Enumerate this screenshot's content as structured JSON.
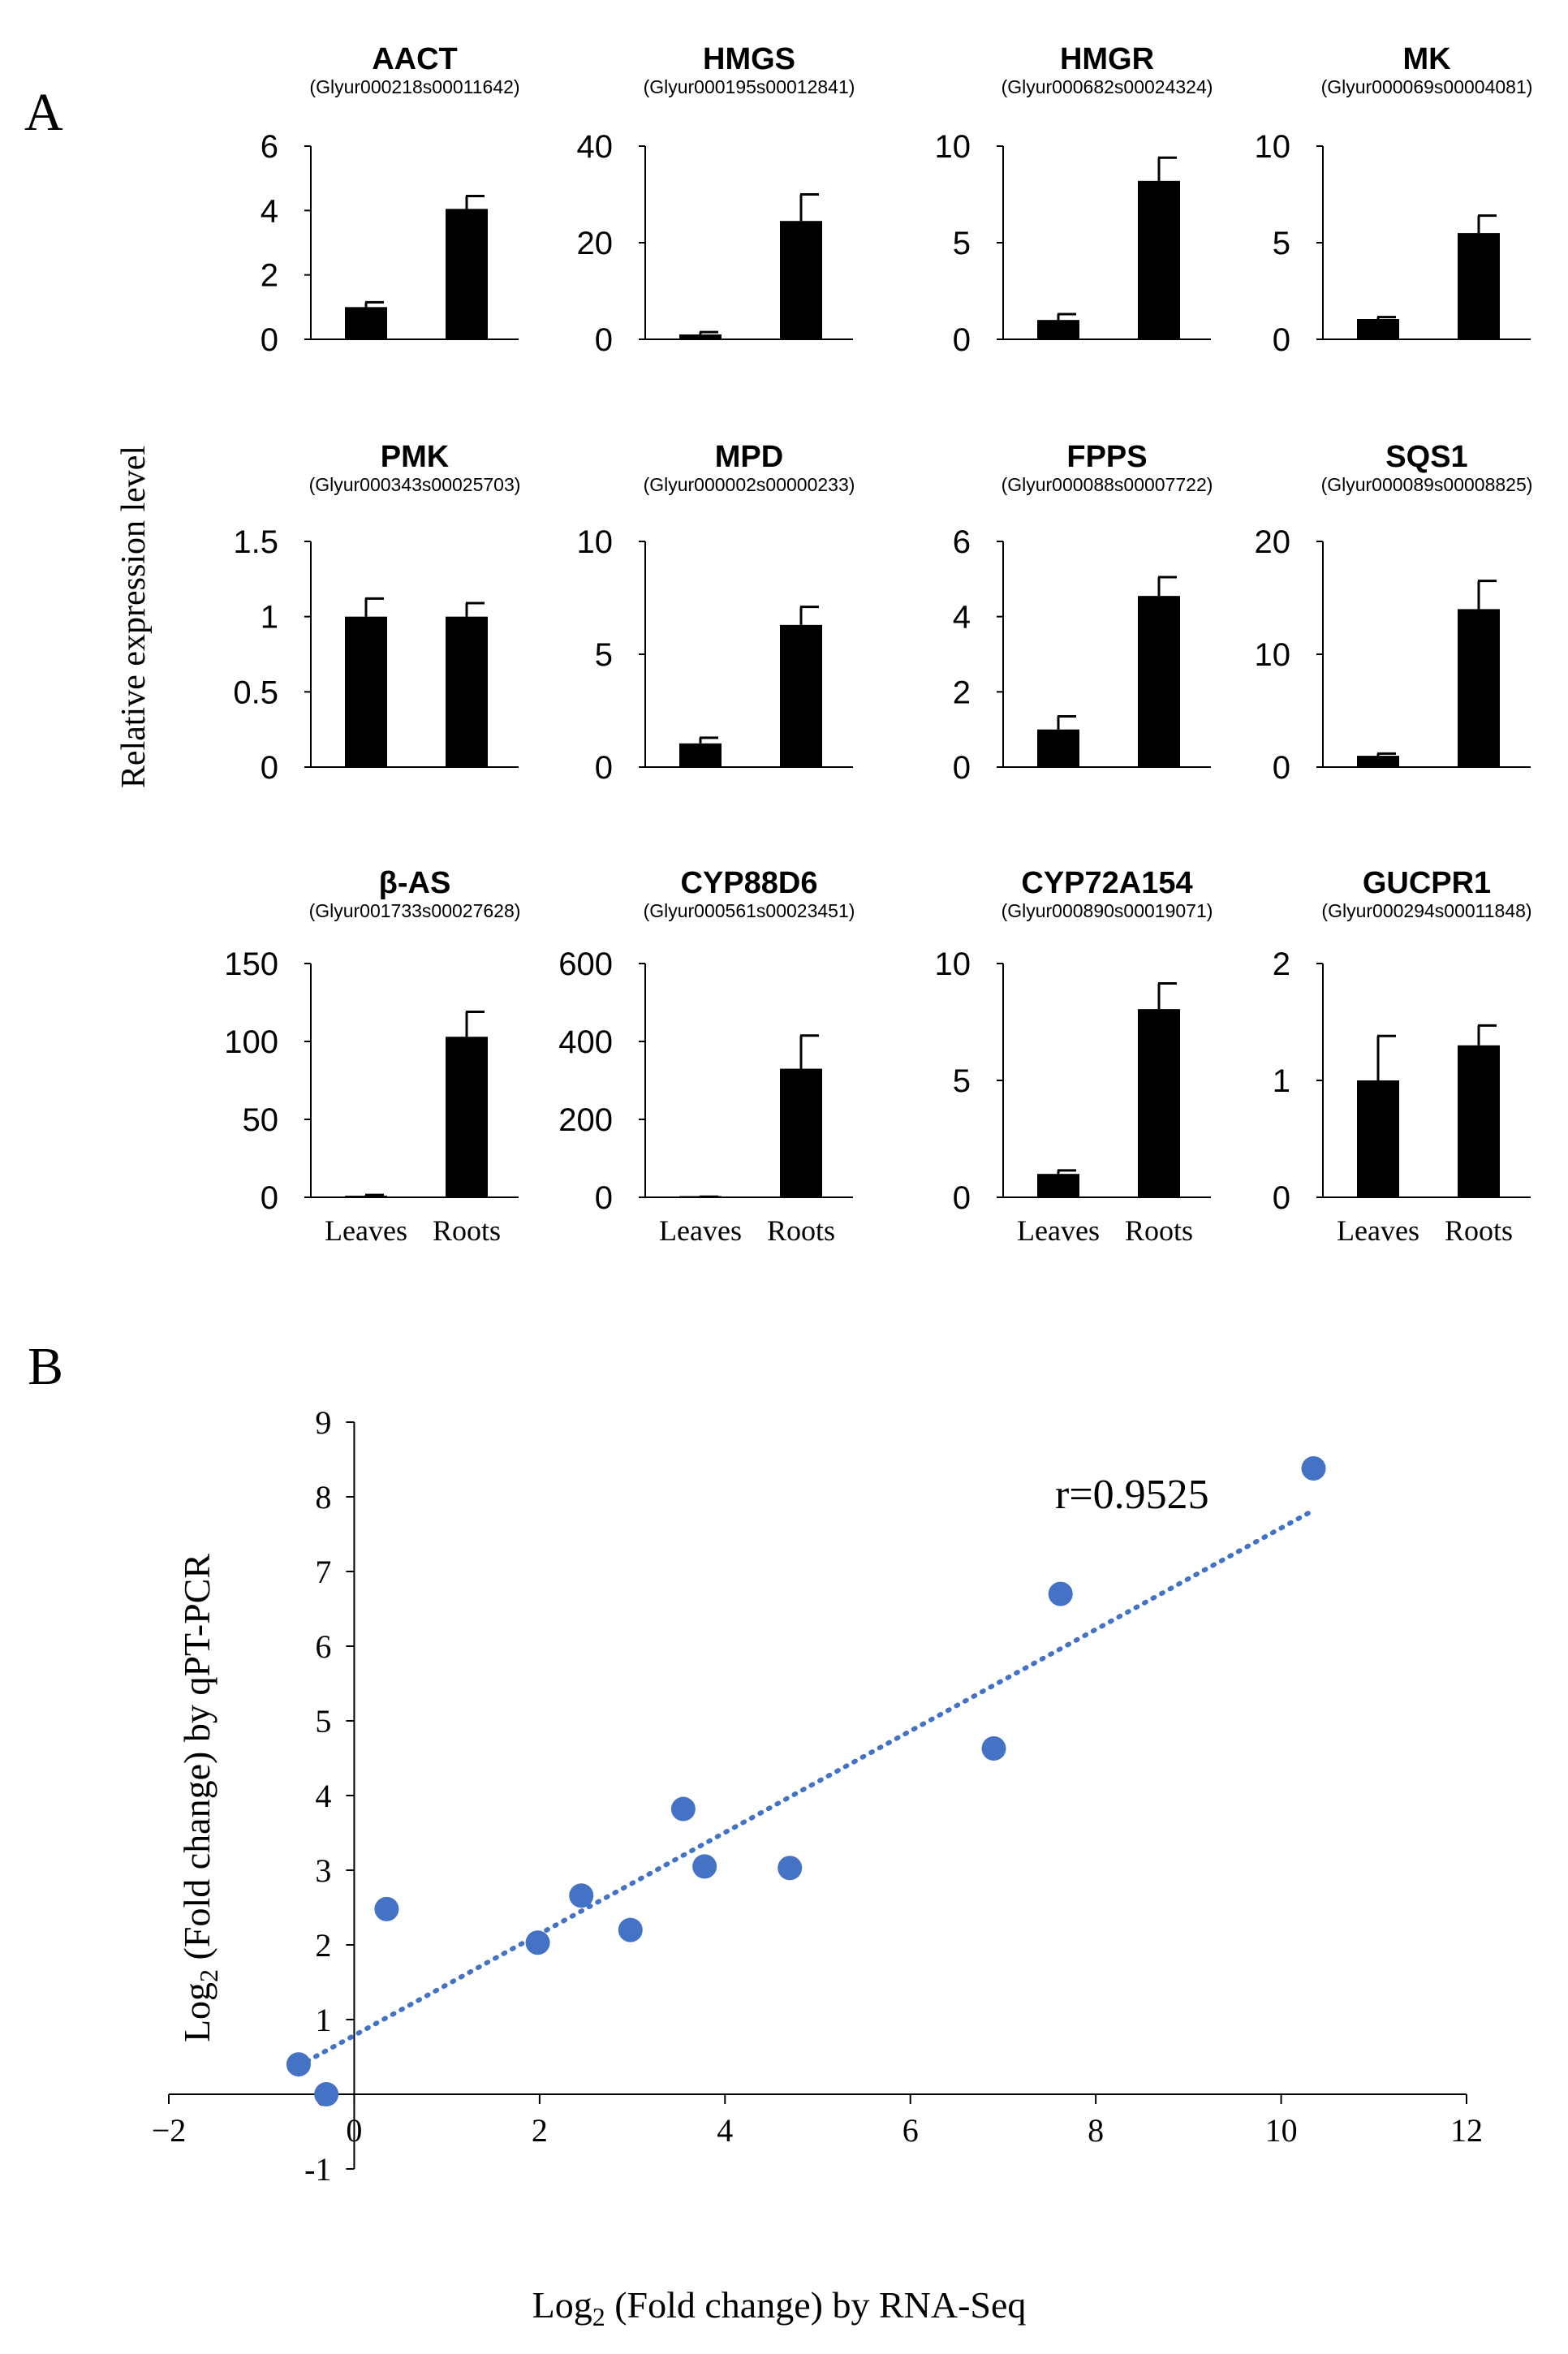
{
  "panel_a_label": "A",
  "panel_b_label": "B",
  "shared_ylabel": "Relative expression level",
  "categories": [
    "Leaves",
    "Roots"
  ],
  "chart_data": [
    {
      "type": "bar",
      "title": "AACT",
      "subtitle": "(Glyur000218s00011642)",
      "categories": [
        "Leaves",
        "Roots"
      ],
      "values": [
        1.0,
        4.05
      ],
      "errors": [
        0.15,
        0.4
      ],
      "yticks": [
        "0",
        "2",
        "4",
        "6"
      ],
      "ylim": [
        0,
        6
      ]
    },
    {
      "type": "bar",
      "title": "HMGS",
      "subtitle": "(Glyur000195s00012841)",
      "categories": [
        "Leaves",
        "Roots"
      ],
      "values": [
        1.0,
        24.5
      ],
      "errors": [
        0.5,
        5.5
      ],
      "yticks": [
        "0",
        "20",
        "40"
      ],
      "ylim": [
        0,
        40
      ]
    },
    {
      "type": "bar",
      "title": "HMGR",
      "subtitle": "(Glyur000682s00024324)",
      "categories": [
        "Leaves",
        "Roots"
      ],
      "values": [
        1.0,
        8.2
      ],
      "errors": [
        0.3,
        1.2
      ],
      "yticks": [
        "0",
        "5",
        "10"
      ],
      "ylim": [
        0,
        10
      ]
    },
    {
      "type": "bar",
      "title": "MK",
      "subtitle": "(Glyur000069s00004081)",
      "categories": [
        "Leaves",
        "Roots"
      ],
      "values": [
        1.05,
        5.5
      ],
      "errors": [
        0.1,
        0.9
      ],
      "yticks": [
        "0",
        "5",
        "10"
      ],
      "ylim": [
        0,
        10
      ]
    },
    {
      "type": "bar",
      "title": "PMK",
      "subtitle": "(Glyur000343s00025703)",
      "categories": [
        "Leaves",
        "Roots"
      ],
      "values": [
        1.0,
        1.0
      ],
      "errors": [
        0.12,
        0.09
      ],
      "yticks": [
        "0",
        "0.5",
        "1",
        "1.5"
      ],
      "ylim": [
        0,
        1.5
      ]
    },
    {
      "type": "bar",
      "title": "MPD",
      "subtitle": "(Glyur000002s00000233)",
      "categories": [
        "Leaves",
        "Roots"
      ],
      "values": [
        1.05,
        6.3
      ],
      "errors": [
        0.25,
        0.8
      ],
      "yticks": [
        "0",
        "5",
        "10"
      ],
      "ylim": [
        0,
        10
      ]
    },
    {
      "type": "bar",
      "title": "FPPS",
      "subtitle": "(Glyur000088s00007722)",
      "categories": [
        "Leaves",
        "Roots"
      ],
      "values": [
        1.0,
        4.55
      ],
      "errors": [
        0.35,
        0.5
      ],
      "yticks": [
        "0",
        "2",
        "4",
        "6"
      ],
      "ylim": [
        0,
        6
      ]
    },
    {
      "type": "bar",
      "title": "SQS1",
      "subtitle": "(Glyur000089s00008825)",
      "categories": [
        "Leaves",
        "Roots"
      ],
      "values": [
        1.0,
        14.0
      ],
      "errors": [
        0.2,
        2.5
      ],
      "yticks": [
        "0",
        "10",
        "20"
      ],
      "ylim": [
        0,
        20
      ]
    },
    {
      "type": "bar",
      "title": "β-AS",
      "subtitle": "(Glyur001733s00027628)",
      "categories": [
        "Leaves",
        "Roots"
      ],
      "values": [
        1.0,
        103.0
      ],
      "errors": [
        0.5,
        16.0
      ],
      "yticks": [
        "0",
        "50",
        "100",
        "150"
      ],
      "ylim": [
        0,
        150
      ]
    },
    {
      "type": "bar",
      "title": "CYP88D6",
      "subtitle": "(Glyur000561s00023451)",
      "categories": [
        "Leaves",
        "Roots"
      ],
      "values": [
        1.0,
        330.0
      ],
      "errors": [
        0.5,
        85.0
      ],
      "yticks": [
        "0",
        "200",
        "400",
        "600"
      ],
      "ylim": [
        0,
        600
      ]
    },
    {
      "type": "bar",
      "title": "CYP72A154",
      "subtitle": "(Glyur000890s00019071)",
      "categories": [
        "Leaves",
        "Roots"
      ],
      "values": [
        1.0,
        8.05
      ],
      "errors": [
        0.15,
        1.1
      ],
      "yticks": [
        "0",
        "5",
        "10"
      ],
      "ylim": [
        0,
        10
      ]
    },
    {
      "type": "bar",
      "title": "GUCPR1",
      "subtitle": "(Glyur000294s00011848)",
      "categories": [
        "Leaves",
        "Roots"
      ],
      "values": [
        1.0,
        1.3
      ],
      "errors": [
        0.38,
        0.17
      ],
      "yticks": [
        "0",
        "1",
        "2"
      ],
      "ylim": [
        0,
        2
      ]
    },
    {
      "type": "scatter",
      "xlabel_main": "Log",
      "xlabel_sub": "2",
      "xlabel_rest": " (Fold change) by RNA-Seq",
      "ylabel_main": "Log",
      "ylabel_sub": "2",
      "ylabel_rest": " (Fold change) by qPT-PCR",
      "annotation": "r=0.9525",
      "xlim": [
        -2,
        12
      ],
      "ylim": [
        -1,
        9
      ],
      "xticks": [
        "−2",
        "0",
        "2",
        "4",
        "6",
        "8",
        "10",
        "12"
      ],
      "yticks": [
        "-1",
        "0",
        "1",
        "2",
        "3",
        "4",
        "5",
        "6",
        "7",
        "8",
        "9"
      ],
      "points": [
        {
          "x": -0.6,
          "y": 0.4
        },
        {
          "x": -0.3,
          "y": 0.0
        },
        {
          "x": 0.35,
          "y": 2.48
        },
        {
          "x": 1.98,
          "y": 2.03
        },
        {
          "x": 2.45,
          "y": 2.66
        },
        {
          "x": 2.98,
          "y": 2.2
        },
        {
          "x": 3.55,
          "y": 3.82
        },
        {
          "x": 3.78,
          "y": 3.05
        },
        {
          "x": 4.7,
          "y": 3.03
        },
        {
          "x": 6.9,
          "y": 4.63
        },
        {
          "x": 7.62,
          "y": 6.7
        },
        {
          "x": 10.35,
          "y": 8.38
        }
      ],
      "trendline": {
        "x": [
          -0.6,
          10.35
        ],
        "y": [
          0.38,
          7.82
        ]
      },
      "point_color": "#4472C4",
      "trend_color": "#4472C4"
    }
  ]
}
